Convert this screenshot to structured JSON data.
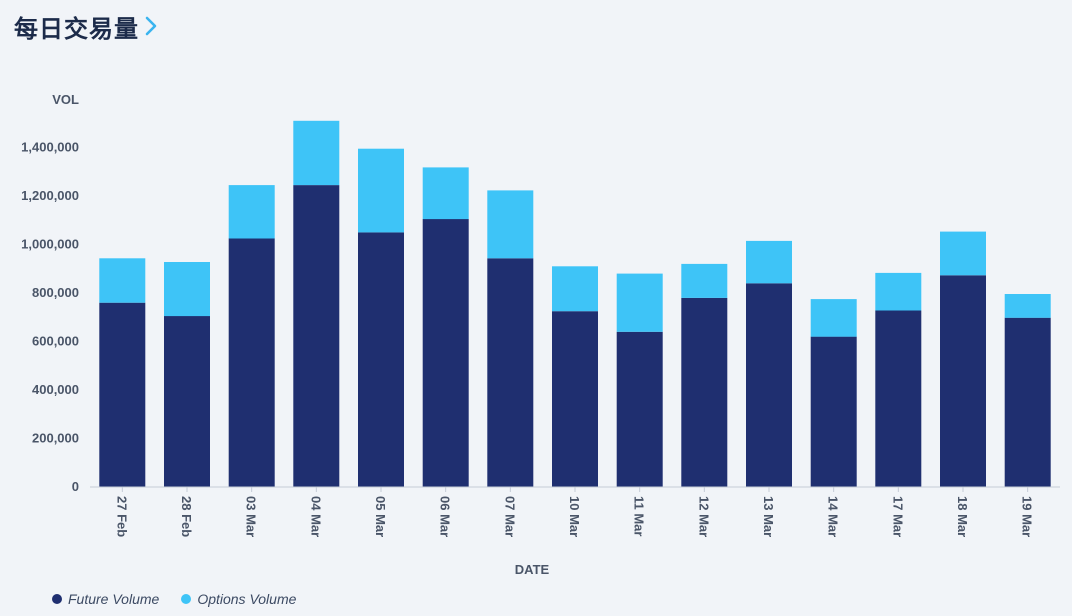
{
  "header": {
    "title": "每日交易量",
    "chevron_icon": "chevron-right-icon"
  },
  "colors": {
    "background": "#f1f4f8",
    "future": "#1f2f70",
    "options": "#3ec4f7",
    "accent": "#3ab4ef",
    "axis_text": "#4a5568"
  },
  "chart_data": {
    "type": "bar",
    "stacked": true,
    "title": "每日交易量",
    "xlabel": "DATE",
    "ylabel": "VOL",
    "categories": [
      "27 Feb",
      "28 Feb",
      "03 Mar",
      "04 Mar",
      "05 Mar",
      "06 Mar",
      "07 Mar",
      "10 Mar",
      "11 Mar",
      "12 Mar",
      "13 Mar",
      "14 Mar",
      "17 Mar",
      "18 Mar",
      "19 Mar"
    ],
    "series": [
      {
        "name": "Future Volume",
        "color": "#1f2f70",
        "values": [
          760000,
          705000,
          1025000,
          1245000,
          1050000,
          1105000,
          943000,
          725000,
          640000,
          780000,
          840000,
          620000,
          728000,
          873000,
          698000
        ]
      },
      {
        "name": "Options Volume",
        "color": "#3ec4f7",
        "values": [
          183000,
          223000,
          220000,
          265000,
          345000,
          213000,
          280000,
          185000,
          240000,
          140000,
          175000,
          155000,
          155000,
          180000,
          98000
        ]
      }
    ],
    "ylim": [
      0,
      1600000
    ],
    "yticks": [
      0,
      200000,
      400000,
      600000,
      800000,
      1000000,
      1200000,
      1400000
    ],
    "ytick_labels": [
      "0",
      "200,000",
      "400,000",
      "600,000",
      "800,000",
      "1,000,000",
      "1,200,000",
      "1,400,000"
    ],
    "grid": false,
    "legend_position": "bottom-left"
  }
}
